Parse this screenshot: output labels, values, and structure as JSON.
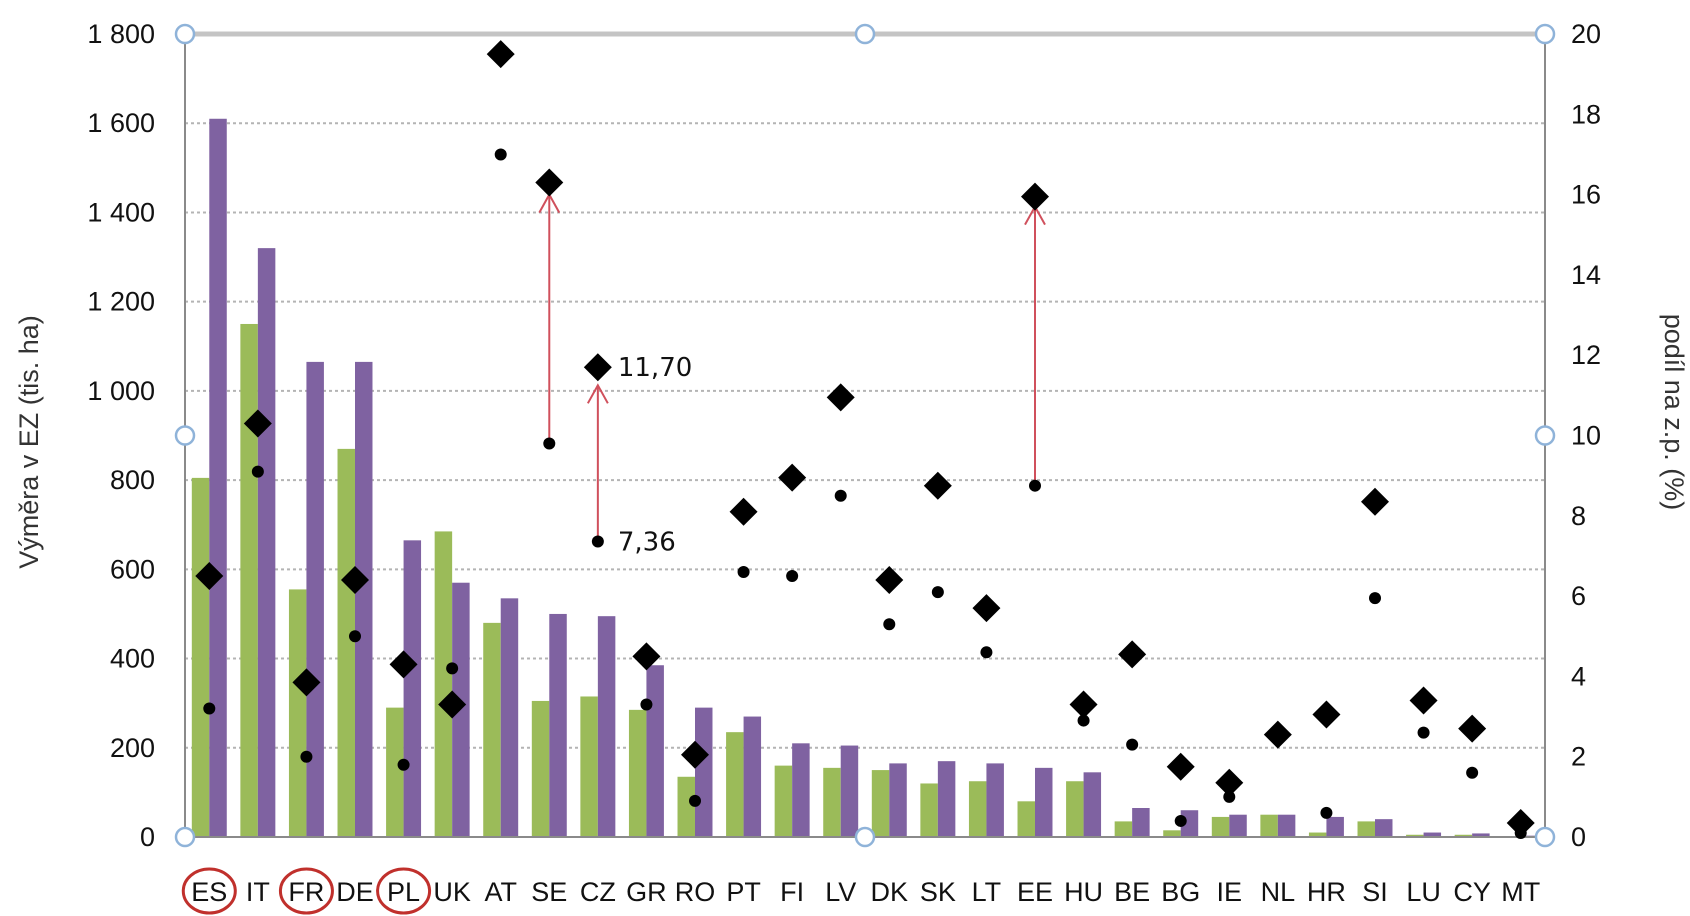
{
  "chart_data": {
    "type": "bar",
    "title": "",
    "xlabel": "",
    "ylabel_left": "Výměra v EZ (tis. ha)",
    "ylabel_right": "podíl na z.p. (%)",
    "ylim_left": [
      0,
      1800
    ],
    "ylim_right": [
      0,
      20
    ],
    "left_ticks": [
      "0",
      "200",
      "400",
      "600",
      "800",
      "1 000",
      "1 200",
      "1 400",
      "1 600",
      "1 800"
    ],
    "right_ticks": [
      "0",
      "2",
      "4",
      "6",
      "8",
      "10",
      "12",
      "14",
      "16",
      "18",
      "20"
    ],
    "grid": true,
    "legend": "none",
    "categories": [
      "ES",
      "IT",
      "FR",
      "DE",
      "PL",
      "UK",
      "AT",
      "SE",
      "CZ",
      "GR",
      "RO",
      "PT",
      "FI",
      "LV",
      "DK",
      "SK",
      "LT",
      "EE",
      "HU",
      "BE",
      "BG",
      "IE",
      "NL",
      "HR",
      "SI",
      "LU",
      "CY",
      "MT"
    ],
    "highlighted_categories": [
      "ES",
      "FR",
      "PL"
    ],
    "series": [
      {
        "kind": "bar",
        "axis": "left",
        "color": "#9bbb59",
        "values": [
          805,
          1150,
          555,
          870,
          290,
          685,
          480,
          305,
          315,
          285,
          135,
          235,
          160,
          155,
          150,
          120,
          125,
          80,
          125,
          35,
          15,
          45,
          50,
          10,
          35,
          5,
          5,
          2
        ]
      },
      {
        "kind": "bar",
        "axis": "left",
        "color": "#7f62a1",
        "values": [
          1610,
          1320,
          1065,
          1065,
          665,
          570,
          535,
          500,
          495,
          385,
          290,
          270,
          210,
          205,
          165,
          170,
          165,
          155,
          145,
          65,
          60,
          50,
          50,
          45,
          40,
          10,
          8,
          3
        ]
      },
      {
        "kind": "marker",
        "shape": "diamond",
        "axis": "right",
        "color": "#000000",
        "values": [
          6.5,
          10.3,
          3.85,
          6.4,
          4.3,
          3.3,
          19.5,
          16.3,
          11.7,
          4.5,
          2.05,
          8.1,
          8.95,
          10.95,
          6.4,
          8.75,
          5.7,
          15.95,
          3.3,
          4.55,
          1.75,
          1.35,
          2.55,
          3.05,
          8.35,
          3.4,
          2.7,
          0.35
        ]
      },
      {
        "kind": "marker",
        "shape": "dot",
        "axis": "right",
        "color": "#000000",
        "values": [
          3.2,
          9.1,
          2.0,
          5.0,
          1.8,
          4.2,
          17.0,
          9.8,
          7.36,
          3.3,
          0.9,
          6.6,
          6.5,
          8.5,
          5.3,
          6.1,
          4.6,
          8.75,
          2.9,
          2.3,
          0.4,
          1.0,
          2.6,
          0.6,
          5.95,
          2.6,
          1.6,
          0.1
        ]
      }
    ],
    "annotations": [
      {
        "category": "CZ",
        "value": 11.7,
        "text": "11,70"
      },
      {
        "category": "CZ",
        "value": 7.36,
        "text": "7,36"
      }
    ],
    "arrows": [
      {
        "category": "SE",
        "from": 9.8,
        "to": 16.0
      },
      {
        "category": "CZ",
        "from": 7.36,
        "to": 11.25
      },
      {
        "category": "EE",
        "from": 8.75,
        "to": 15.7
      }
    ],
    "colors": {
      "highlight_circle": "#c0302c",
      "arrow": "#d0505c",
      "grid": "#b4b4b4",
      "axis": "#8a8a8a"
    }
  }
}
